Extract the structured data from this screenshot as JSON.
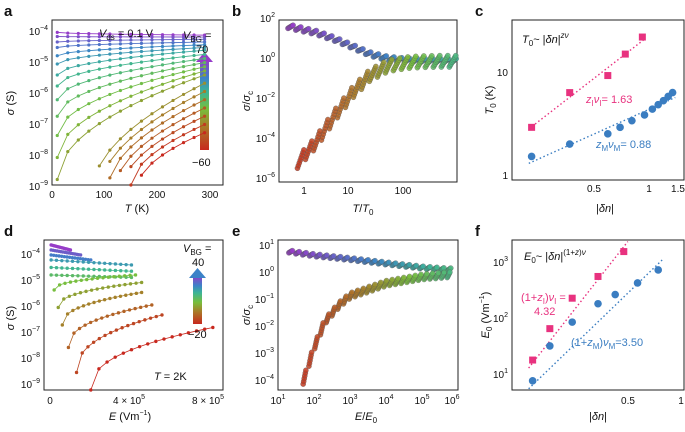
{
  "chart_data": [
    {
      "panel": "a",
      "type": "line",
      "xlabel": "T (K)",
      "ylabel": "σ (S)",
      "xscale": "linear",
      "yscale": "log",
      "xlim": [
        0,
        325
      ],
      "ylim": [
        1e-09,
        0.001
      ],
      "xticks": [
        "0",
        "100",
        "200",
        "300"
      ],
      "yticks": [
        "10⁻⁹",
        "10⁻⁸",
        "10⁻⁷",
        "10⁻⁶",
        "10⁻⁵",
        "10⁻⁴"
      ],
      "annotation": "Vds = 0.1 V",
      "colorbar": {
        "label": "VBG =",
        "top": "70",
        "bottom": "−60"
      },
      "x": [
        10,
        30,
        50,
        70,
        90,
        110,
        130,
        150,
        170,
        190,
        210,
        230,
        250,
        270,
        290
      ],
      "series_log10_sigma_at_T300": [
        -3.55,
        -3.62,
        -3.7,
        -3.8,
        -3.9,
        -4.0,
        -4.1,
        -4.25,
        -4.4,
        -4.55,
        -4.7,
        -4.85,
        -5.0,
        -5.3,
        -5.6,
        -5.9,
        -6.2,
        -6.5,
        -6.8,
        -7.1
      ],
      "series_log10_sigma_at_T10": [
        -3.45,
        -3.6,
        -3.8,
        -4.0,
        -4.3,
        -4.6,
        -5.0,
        -5.4,
        -5.9,
        -6.5,
        -7.2,
        -8.0,
        -8.8,
        -9.0,
        -9.0,
        -9.0,
        -9.0,
        -9.0,
        -9.0,
        -9.0
      ]
    },
    {
      "panel": "b",
      "type": "scatter",
      "xlabel": "T/T0",
      "ylabel": "σ/σc",
      "xscale": "log",
      "yscale": "log",
      "xlim": [
        0.5,
        400
      ],
      "ylim": [
        1e-06,
        100
      ],
      "xticks": [
        "1",
        "10",
        "100"
      ],
      "yticks": [
        "10⁻⁶",
        "10⁻⁴",
        "10⁻²",
        "10⁰",
        "10²"
      ],
      "upper_branch": {
        "x": [
          1,
          2,
          4,
          8,
          15,
          30,
          60,
          100,
          200,
          300
        ],
        "y": [
          40,
          25,
          12,
          5,
          2.2,
          1.3,
          1.05,
          1.0,
          1.0,
          1.0
        ]
      },
      "lower_branch": {
        "x": [
          1,
          2,
          4,
          8,
          15,
          30,
          60,
          100,
          200,
          300
        ],
        "y": [
          1e-05,
          0.0001,
          0.002,
          0.03,
          0.2,
          0.6,
          0.85,
          0.95,
          1.0,
          1.0
        ]
      }
    },
    {
      "panel": "c",
      "type": "scatter",
      "xlabel": "|δn|",
      "ylabel": "T0 (K)",
      "xscale": "log",
      "yscale": "log",
      "xlim": [
        0.07,
        1.6
      ],
      "ylim": [
        1,
        45
      ],
      "xticks": [
        "0.5",
        "1",
        "1.5"
      ],
      "yticks": [
        "1",
        "10"
      ],
      "formula": "T0 ~ |δn|^zν",
      "series": [
        {
          "name": "insulator",
          "color": "#e8327f",
          "x": [
            0.1,
            0.2,
            0.4,
            0.55,
            0.75
          ],
          "y": [
            3.5,
            8.0,
            12.0,
            20.0,
            30.0
          ],
          "label": "zIνI = 1.63"
        },
        {
          "name": "metal",
          "color": "#3a7dc1",
          "x": [
            0.1,
            0.2,
            0.4,
            0.5,
            0.62,
            0.78,
            0.9,
            1.0,
            1.1,
            1.2,
            1.3
          ],
          "y": [
            1.75,
            2.35,
            3.0,
            3.5,
            4.1,
            4.7,
            5.4,
            6.0,
            6.6,
            7.3,
            8.0
          ],
          "label": "zMνM = 0.88"
        }
      ]
    },
    {
      "panel": "d",
      "type": "line",
      "xlabel": "E (Vm⁻¹)",
      "ylabel": "σ (S)",
      "xscale": "linear",
      "yscale": "log",
      "xlim": [
        -30000,
        850000
      ],
      "ylim": [
        5e-10,
        0.0005
      ],
      "xticks": [
        "0",
        "4 × 10⁵",
        "8 × 10⁵"
      ],
      "yticks": [
        "10⁻⁹",
        "10⁻⁸",
        "10⁻⁷",
        "10⁻⁶",
        "10⁻⁵",
        "10⁻⁴"
      ],
      "annotation": "T = 2K",
      "colorbar": {
        "label": "VBG =",
        "top": "40",
        "bottom": "−20"
      },
      "curves": [
        {
          "E0": 5000,
          "Emax": 100000,
          "log10_start": -3.5,
          "log10_end": -3.7
        },
        {
          "E0": 5000,
          "Emax": 150000,
          "log10_start": -3.7,
          "log10_end": -3.9
        },
        {
          "E0": 5000,
          "Emax": 200000,
          "log10_start": -3.9,
          "log10_end": -4.1
        },
        {
          "E0": 5000,
          "Emax": 400000,
          "log10_start": -4.1,
          "log10_end": -4.3
        },
        {
          "E0": 5000,
          "Emax": 400000,
          "log10_start": -4.4,
          "log10_end": -4.55
        },
        {
          "E0": 5000,
          "Emax": 400000,
          "log10_start": -4.7,
          "log10_end": -4.8
        },
        {
          "E0": 20000,
          "Emax": 420000,
          "log10_start": -5.3,
          "log10_end": -4.7
        },
        {
          "E0": 40000,
          "Emax": 450000,
          "log10_start": -6.0,
          "log10_end": -5.0
        },
        {
          "E0": 60000,
          "Emax": 450000,
          "log10_start": -6.7,
          "log10_end": -5.4
        },
        {
          "E0": 90000,
          "Emax": 500000,
          "log10_start": -7.6,
          "log10_end": -5.9
        },
        {
          "E0": 130000,
          "Emax": 550000,
          "log10_start": -8.6,
          "log10_end": -6.3
        },
        {
          "E0": 200000,
          "Emax": 800000,
          "log10_start": -9.3,
          "log10_end": -6.8
        }
      ]
    },
    {
      "panel": "e",
      "type": "scatter",
      "xlabel": "E/E0",
      "ylabel": "σ/σc",
      "xscale": "log",
      "yscale": "log",
      "xlim": [
        10,
        1000000
      ],
      "ylim": [
        3e-06,
        30
      ],
      "xticks": [
        "10¹",
        "10²",
        "10³",
        "10⁴",
        "10⁵",
        "10⁶"
      ],
      "yticks": [
        "10⁻⁴",
        "10⁻³",
        "10⁻²",
        "10⁻¹",
        "10⁰",
        "10¹"
      ],
      "upper_branch": {
        "x": [
          20,
          100,
          1000,
          10000,
          100000,
          500000
        ],
        "y": [
          9,
          6,
          4,
          2.5,
          1.6,
          1.3
        ]
      },
      "lower_branch": {
        "x": [
          50,
          100,
          200,
          500,
          1000,
          10000,
          100000,
          500000
        ],
        "y": [
          8e-06,
          0.0003,
          0.005,
          0.03,
          0.08,
          0.3,
          0.6,
          0.75
        ]
      }
    },
    {
      "panel": "f",
      "type": "scatter",
      "xlabel": "|δn|",
      "ylabel": "E0 (Vm⁻¹)",
      "xscale": "log",
      "yscale": "log",
      "xlim": [
        0.1,
        1.0
      ],
      "ylim": [
        4,
        3000
      ],
      "xticks": [
        "0.5",
        "1"
      ],
      "yticks": [
        "10¹",
        "10²",
        "10³"
      ],
      "formula": "E0 ~ |δn|^(1+z)ν",
      "series": [
        {
          "name": "insulator",
          "color": "#e8327f",
          "x": [
            0.12,
            0.22,
            0.35,
            0.5,
            0.65
          ],
          "y": [
            15,
            60,
            230,
            600,
            1800
          ],
          "label": "(1+zI)νI = 4.32"
        },
        {
          "name": "metal",
          "color": "#3a7dc1",
          "x": [
            0.12,
            0.22,
            0.35,
            0.5,
            0.6,
            0.73,
            0.85
          ],
          "y": [
            6,
            28,
            80,
            180,
            270,
            450,
            800
          ],
          "label": "(1+zM)νM = 3.50"
        }
      ]
    }
  ]
}
